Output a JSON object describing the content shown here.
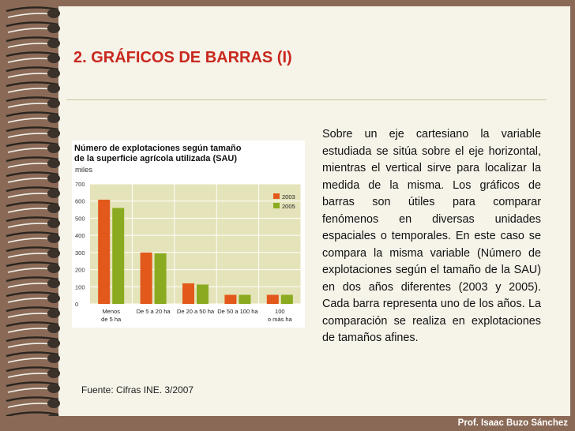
{
  "slide": {
    "title": "2. GRÁFICOS DE BARRAS (I)",
    "body": "Sobre un eje cartesiano la variable estudiada se sitúa sobre el eje horizontal, mientras el vertical sirve para localizar la medida de la misma. Los gráficos de barras son útiles para comparar fenómenos en diversas unidades espaciales o temporales. En este caso se compara la misma variable (Número de explotaciones según el tamaño de la SAU) en dos años diferentes (2003 y 2005). Cada barra representa uno de los años. La comparación se realiza en explotaciones de tamaños afines.",
    "source": "Fuente: Cifras INE. 3/2007",
    "author": "Prof. Isaac Buzo Sánchez"
  },
  "chart_data": {
    "type": "bar",
    "title_line1": "Número de explotaciones según tamaño",
    "title_line2": "de la superficie agrícola utilizada (SAU)",
    "ylabel": "miles",
    "ylim": [
      0,
      700
    ],
    "yticks": [
      "700",
      "600",
      "500",
      "400",
      "300",
      "200",
      "100",
      "0"
    ],
    "categories": [
      [
        "Menos",
        "de 5 ha"
      ],
      [
        "De 5 a 20 ha"
      ],
      [
        "De 20 a 50 ha"
      ],
      [
        "De 50 a 100 ha"
      ],
      [
        "100",
        "o más ha"
      ]
    ],
    "series": [
      {
        "name": "2003",
        "color": "#e2591b",
        "values": [
          608,
          300,
          120,
          53,
          53
        ]
      },
      {
        "name": "2005",
        "color": "#8aab1f",
        "values": [
          560,
          295,
          113,
          53,
          53
        ]
      }
    ],
    "grid": true,
    "legend": "top-right"
  },
  "colors": {
    "title": "#c8281e",
    "background": "#8a6a56",
    "page": "#f6f3e9",
    "plot_bg": "#e5e3b9"
  }
}
